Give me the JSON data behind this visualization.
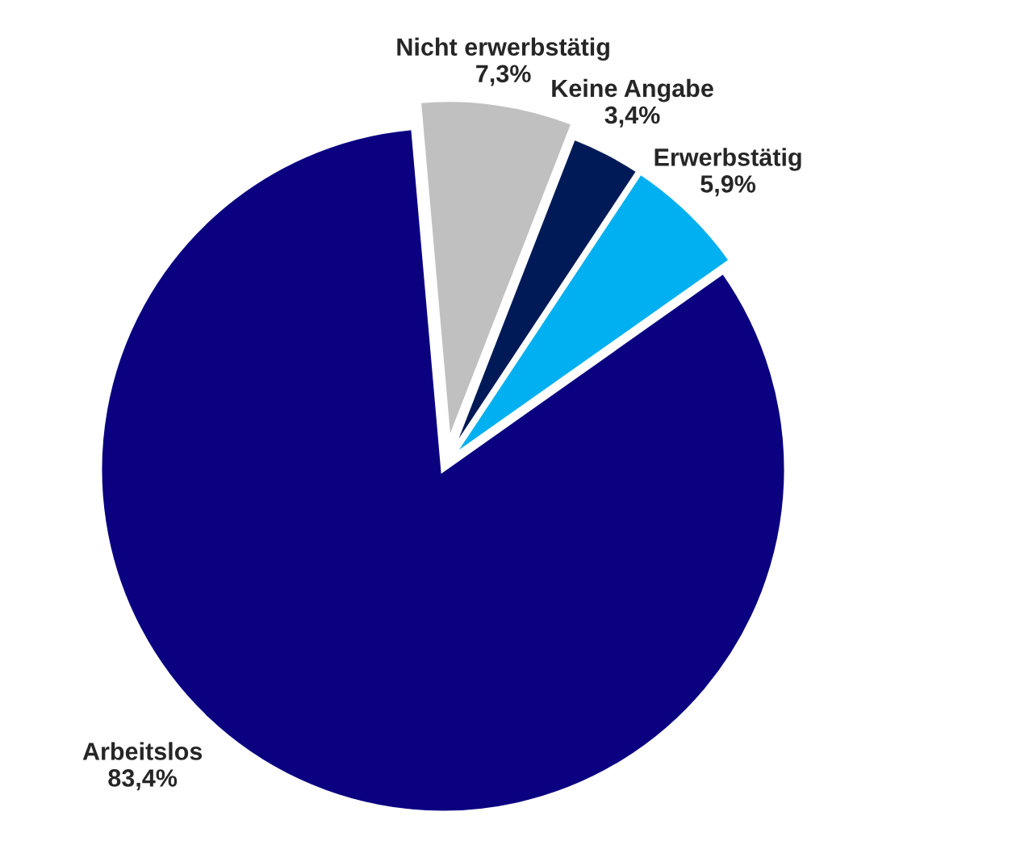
{
  "chart_data": {
    "type": "pie",
    "categories": [
      "Nicht erwerbstätig",
      "Keine Angabe",
      "Erwerbstätig",
      "Arbeitslos"
    ],
    "values": [
      7.3,
      3.4,
      5.9,
      83.4
    ],
    "value_labels": [
      "7,3%",
      "3,4%",
      "5,9%",
      "83,4%"
    ],
    "colors": [
      "#c0c0c0",
      "#001a57",
      "#00b0f0",
      "#0a0080"
    ]
  }
}
